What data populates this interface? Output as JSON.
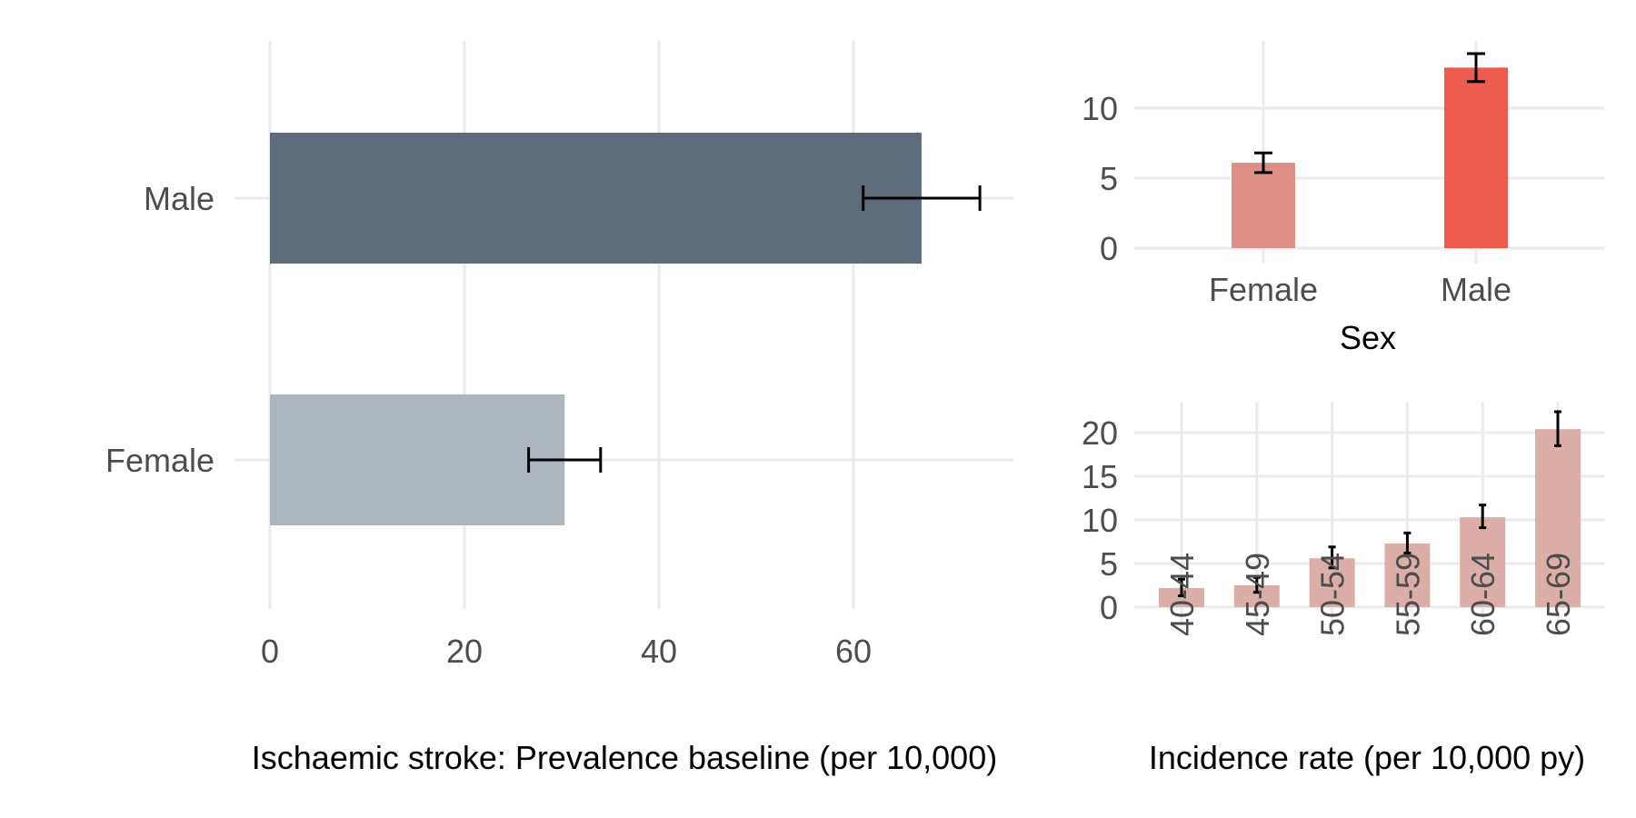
{
  "chart_data": [
    {
      "type": "bar",
      "orientation": "horizontal",
      "categories": [
        "Male",
        "Female"
      ],
      "values": [
        67,
        30.3
      ],
      "error_low": [
        61,
        26.6
      ],
      "error_high": [
        73,
        34
      ],
      "colors": [
        "#5d6b7b",
        "#adb5bf"
      ],
      "xticks": [
        0,
        20,
        40,
        60
      ],
      "xlim": [
        0,
        76
      ],
      "xlabel": "Ischaemic stroke: Prevalence baseline (per 10,000)",
      "ylabel": "",
      "grid": true
    },
    {
      "type": "bar",
      "categories": [
        "Female",
        "Male"
      ],
      "values": [
        6.1,
        12.9
      ],
      "error_low": [
        5.4,
        11.9
      ],
      "error_high": [
        6.8,
        13.9
      ],
      "colors": [
        "#de8f88",
        "#ec5b4d"
      ],
      "yticks": [
        0,
        5,
        10
      ],
      "ylim": [
        0,
        14
      ],
      "xlabel": "Sex",
      "ylabel": "",
      "grid": true
    },
    {
      "type": "bar",
      "categories": [
        "40-44",
        "45-49",
        "50-54",
        "55-59",
        "60-64",
        "65-69"
      ],
      "values": [
        2.2,
        2.5,
        5.6,
        7.3,
        10.3,
        20.4
      ],
      "error_low": [
        1.3,
        1.7,
        4.5,
        6.2,
        9.1,
        18.5
      ],
      "error_high": [
        3.2,
        3.4,
        6.9,
        8.5,
        11.7,
        22.4
      ],
      "color": "#dbaea8",
      "yticks": [
        0,
        5,
        10,
        15,
        20
      ],
      "ylim": [
        0,
        23.5
      ],
      "xlabel": "Incidence rate (per 10,000 py)",
      "ylabel": "",
      "grid": true
    }
  ]
}
